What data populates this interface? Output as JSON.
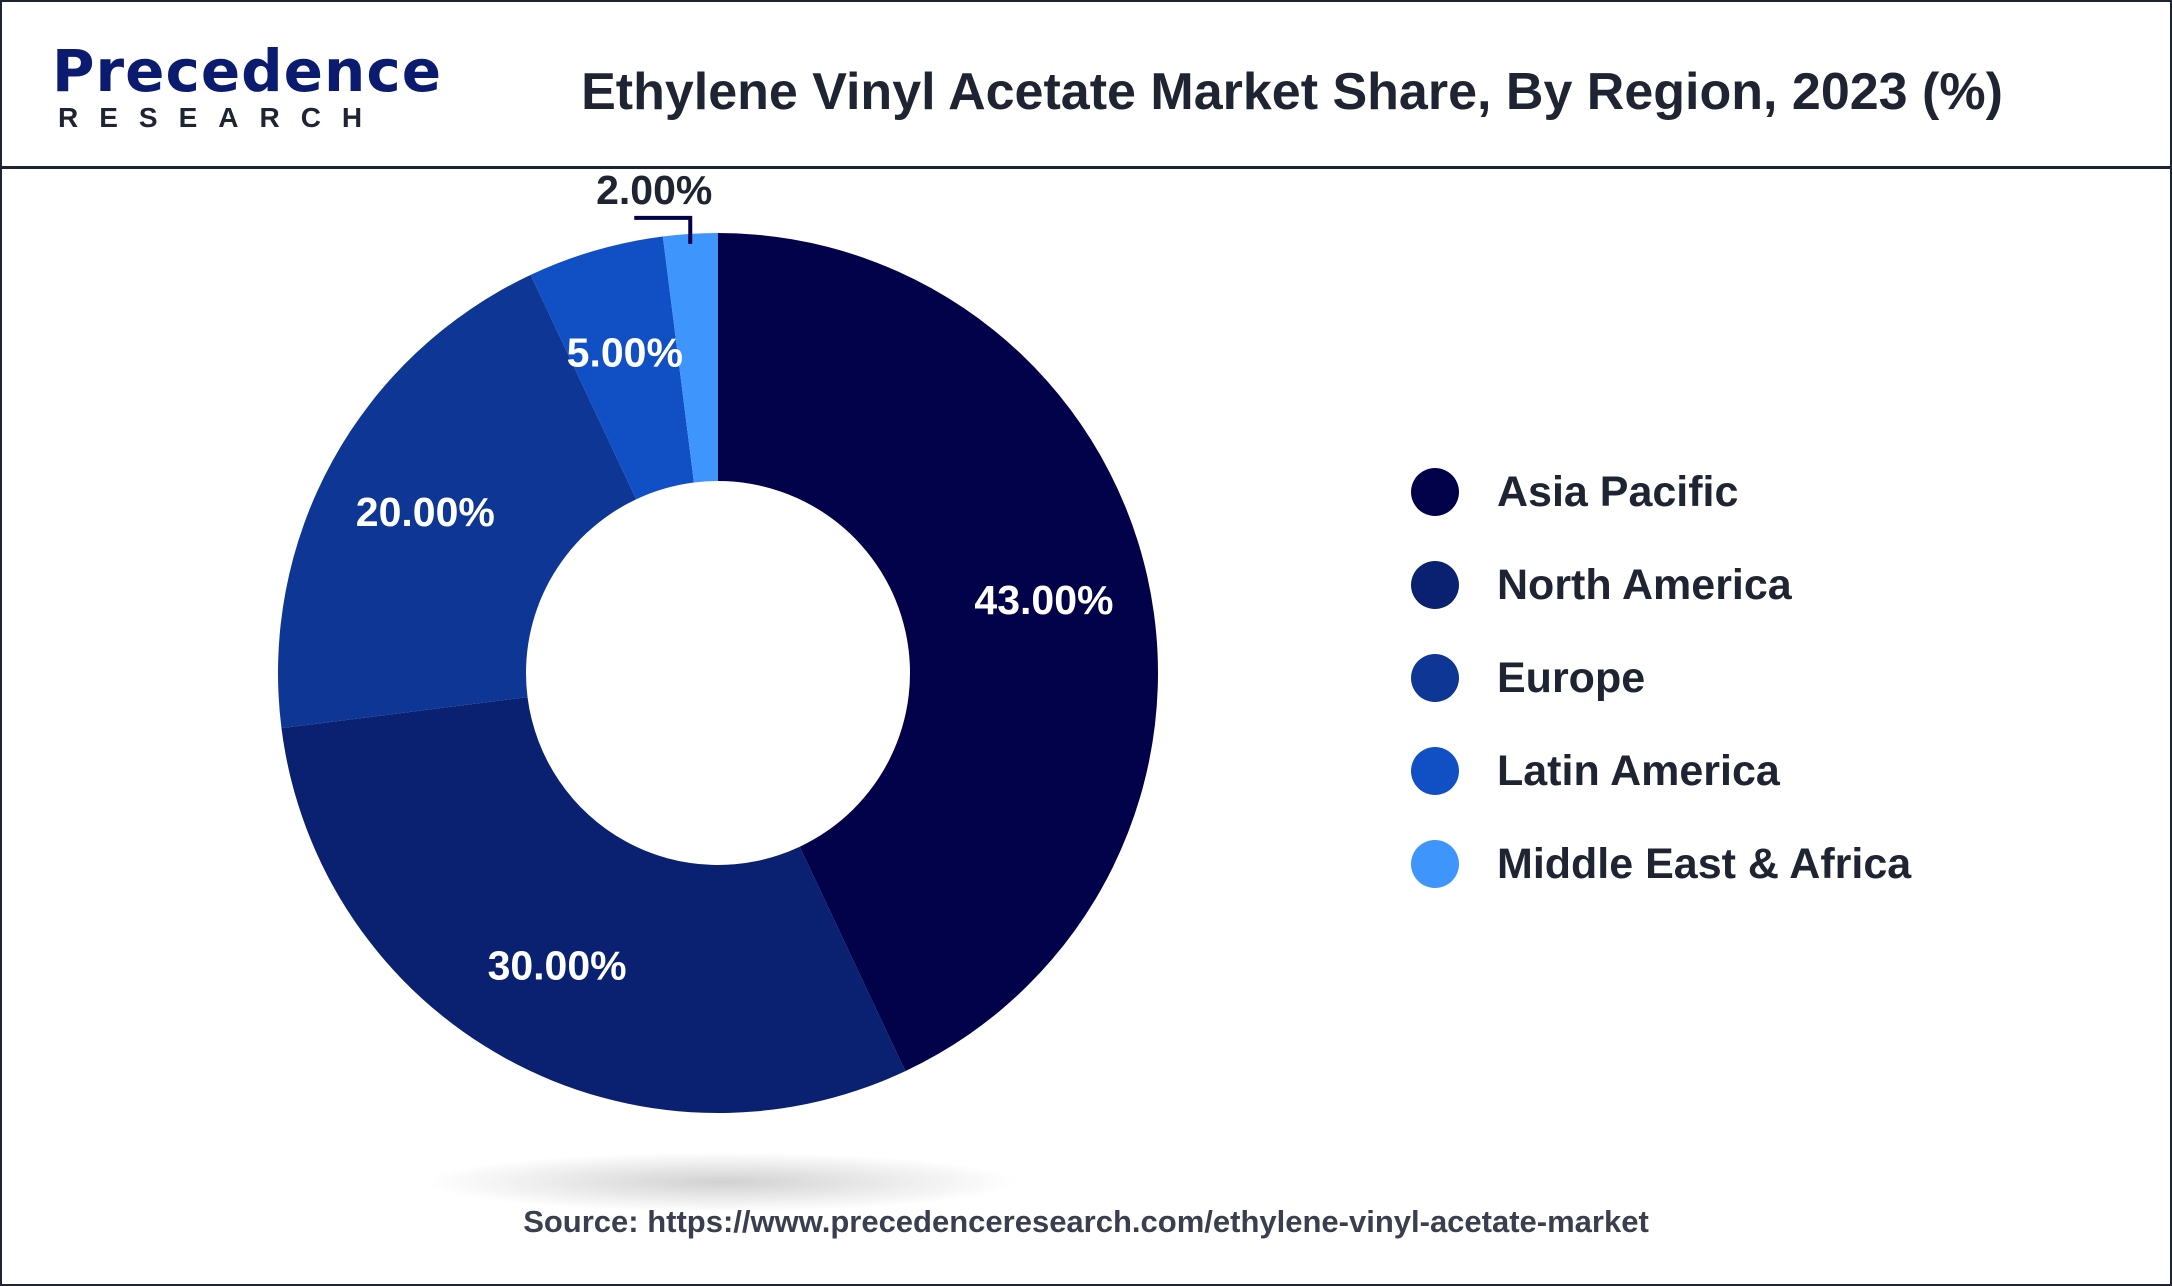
{
  "header": {
    "logo_word": "Precedence",
    "logo_sub": "RESEARCH",
    "title": "Ethylene Vinyl Acetate Market Share, By Region, 2023 (%)"
  },
  "chart_data": {
    "type": "pie",
    "variant": "donut",
    "title": "Ethylene Vinyl Acetate Market Share, By Region, 2023 (%)",
    "unit": "%",
    "categories": [
      "Asia Pacific",
      "North America",
      "Europe",
      "Latin America",
      "Middle East & Africa"
    ],
    "values": [
      43.0,
      30.0,
      20.0,
      5.0,
      2.0
    ],
    "labels": [
      "43.00%",
      "30.00%",
      "20.00%",
      "5.00%",
      "2.00%"
    ],
    "colors": [
      "#02024a",
      "#0a2070",
      "#0e3694",
      "#1050c4",
      "#3e95fb"
    ],
    "legend": "right",
    "start_angle": "12 o'clock",
    "direction": "clockwise"
  },
  "source": "Source: https://www.precedenceresearch.com/ethylene-vinyl-acetate-market"
}
